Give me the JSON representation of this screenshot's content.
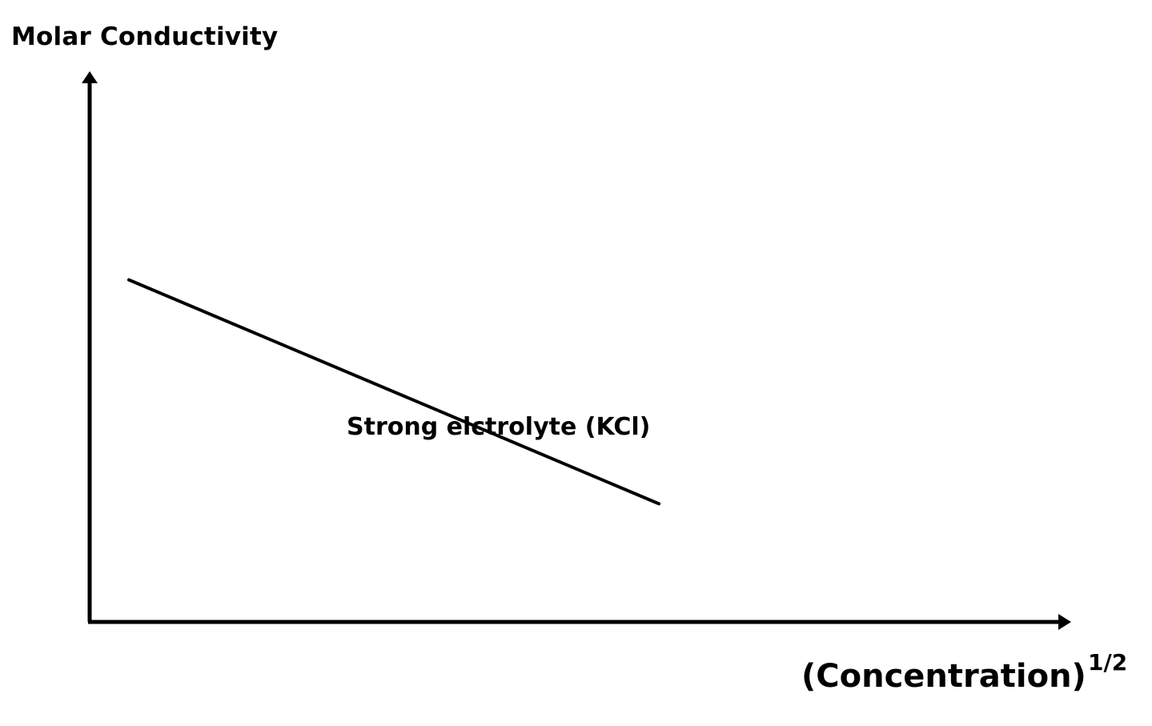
{
  "chart_data": {
    "type": "line",
    "title": "",
    "ylabel": "Molar Conductivity",
    "xlabel": "(Concentration)",
    "xlabel_exponent": "1/2",
    "xlim": [
      0,
      1
    ],
    "ylim": [
      0,
      1
    ],
    "grid": false,
    "series": [
      {
        "name": "Strong elctrolyte (KCl)",
        "x": [
          0.04,
          0.58
        ],
        "y": [
          0.55,
          0.19
        ]
      }
    ],
    "annotations": [
      {
        "text": "Strong elctrolyte (KCl)",
        "series": 0
      }
    ],
    "colors": {
      "line": "#000000",
      "axis": "#000000"
    }
  }
}
